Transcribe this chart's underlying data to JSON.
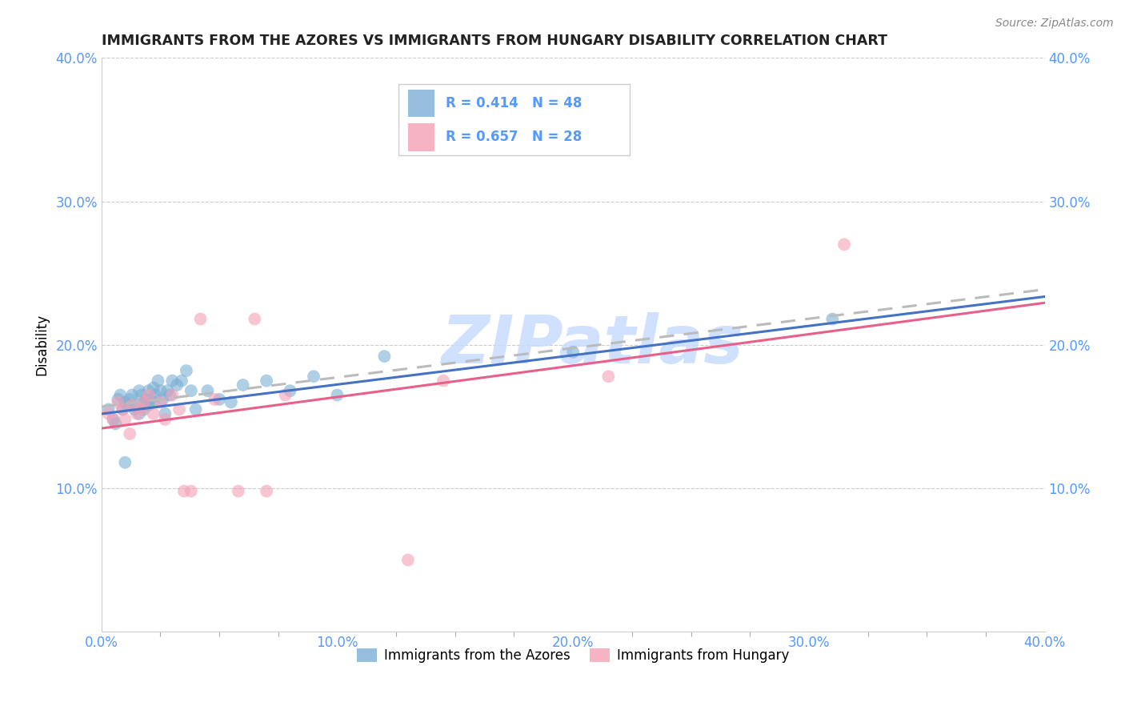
{
  "title": "IMMIGRANTS FROM THE AZORES VS IMMIGRANTS FROM HUNGARY DISABILITY CORRELATION CHART",
  "source": "Source: ZipAtlas.com",
  "ylabel": "Disability",
  "xlim": [
    0.0,
    0.4
  ],
  "ylim": [
    0.0,
    0.4
  ],
  "xtick_labels": [
    "0.0%",
    "",
    "",
    "",
    "10.0%",
    "",
    "",
    "",
    "20.0%",
    "",
    "",
    "",
    "30.0%",
    "",
    "",
    "",
    "40.0%"
  ],
  "xtick_vals": [
    0.0,
    0.025,
    0.05,
    0.075,
    0.1,
    0.125,
    0.15,
    0.175,
    0.2,
    0.225,
    0.25,
    0.275,
    0.3,
    0.325,
    0.35,
    0.375,
    0.4
  ],
  "ytick_vals": [
    0.1,
    0.2,
    0.3,
    0.4
  ],
  "ytick_labels": [
    "10.0%",
    "20.0%",
    "30.0%",
    "40.0%"
  ],
  "legend_r1": "R = 0.414",
  "legend_n1": "N = 48",
  "legend_r2": "R = 0.657",
  "legend_n2": "N = 28",
  "blue_scatter_color": "#7BAFD4",
  "pink_scatter_color": "#F4A0B5",
  "line_gray_dashed": "#BBBBBB",
  "line_blue_solid": "#4472C4",
  "line_pink_solid": "#E8608A",
  "watermark_text": "ZIPatlas",
  "watermark_color": "#C8DCFF",
  "background_color": "#FFFFFF",
  "grid_color": "#CCCCCC",
  "title_color": "#222222",
  "axis_tick_color": "#5599FF",
  "legend_box_color": "#EEEEEE",
  "azores_x": [
    0.003,
    0.005,
    0.006,
    0.007,
    0.008,
    0.009,
    0.01,
    0.01,
    0.011,
    0.012,
    0.013,
    0.014,
    0.015,
    0.016,
    0.016,
    0.017,
    0.018,
    0.018,
    0.019,
    0.02,
    0.02,
    0.021,
    0.022,
    0.022,
    0.023,
    0.024,
    0.025,
    0.026,
    0.027,
    0.028,
    0.029,
    0.03,
    0.032,
    0.034,
    0.036,
    0.038,
    0.04,
    0.045,
    0.05,
    0.055,
    0.06,
    0.07,
    0.08,
    0.09,
    0.1,
    0.12,
    0.2,
    0.31
  ],
  "azores_y": [
    0.155,
    0.148,
    0.145,
    0.162,
    0.165,
    0.155,
    0.118,
    0.16,
    0.158,
    0.162,
    0.165,
    0.155,
    0.158,
    0.152,
    0.168,
    0.165,
    0.16,
    0.155,
    0.162,
    0.158,
    0.168,
    0.162,
    0.16,
    0.17,
    0.165,
    0.175,
    0.168,
    0.162,
    0.152,
    0.168,
    0.165,
    0.175,
    0.172,
    0.175,
    0.182,
    0.168,
    0.155,
    0.168,
    0.162,
    0.16,
    0.172,
    0.175,
    0.168,
    0.178,
    0.165,
    0.192,
    0.195,
    0.218
  ],
  "hungary_x": [
    0.003,
    0.005,
    0.007,
    0.009,
    0.01,
    0.012,
    0.013,
    0.015,
    0.017,
    0.018,
    0.02,
    0.022,
    0.025,
    0.027,
    0.03,
    0.033,
    0.035,
    0.038,
    0.042,
    0.048,
    0.058,
    0.065,
    0.07,
    0.078,
    0.13,
    0.145,
    0.215,
    0.315
  ],
  "hungary_y": [
    0.152,
    0.148,
    0.16,
    0.155,
    0.148,
    0.138,
    0.158,
    0.152,
    0.155,
    0.16,
    0.165,
    0.152,
    0.16,
    0.148,
    0.165,
    0.155,
    0.098,
    0.098,
    0.218,
    0.162,
    0.098,
    0.218,
    0.098,
    0.165,
    0.05,
    0.175,
    0.178,
    0.27
  ]
}
